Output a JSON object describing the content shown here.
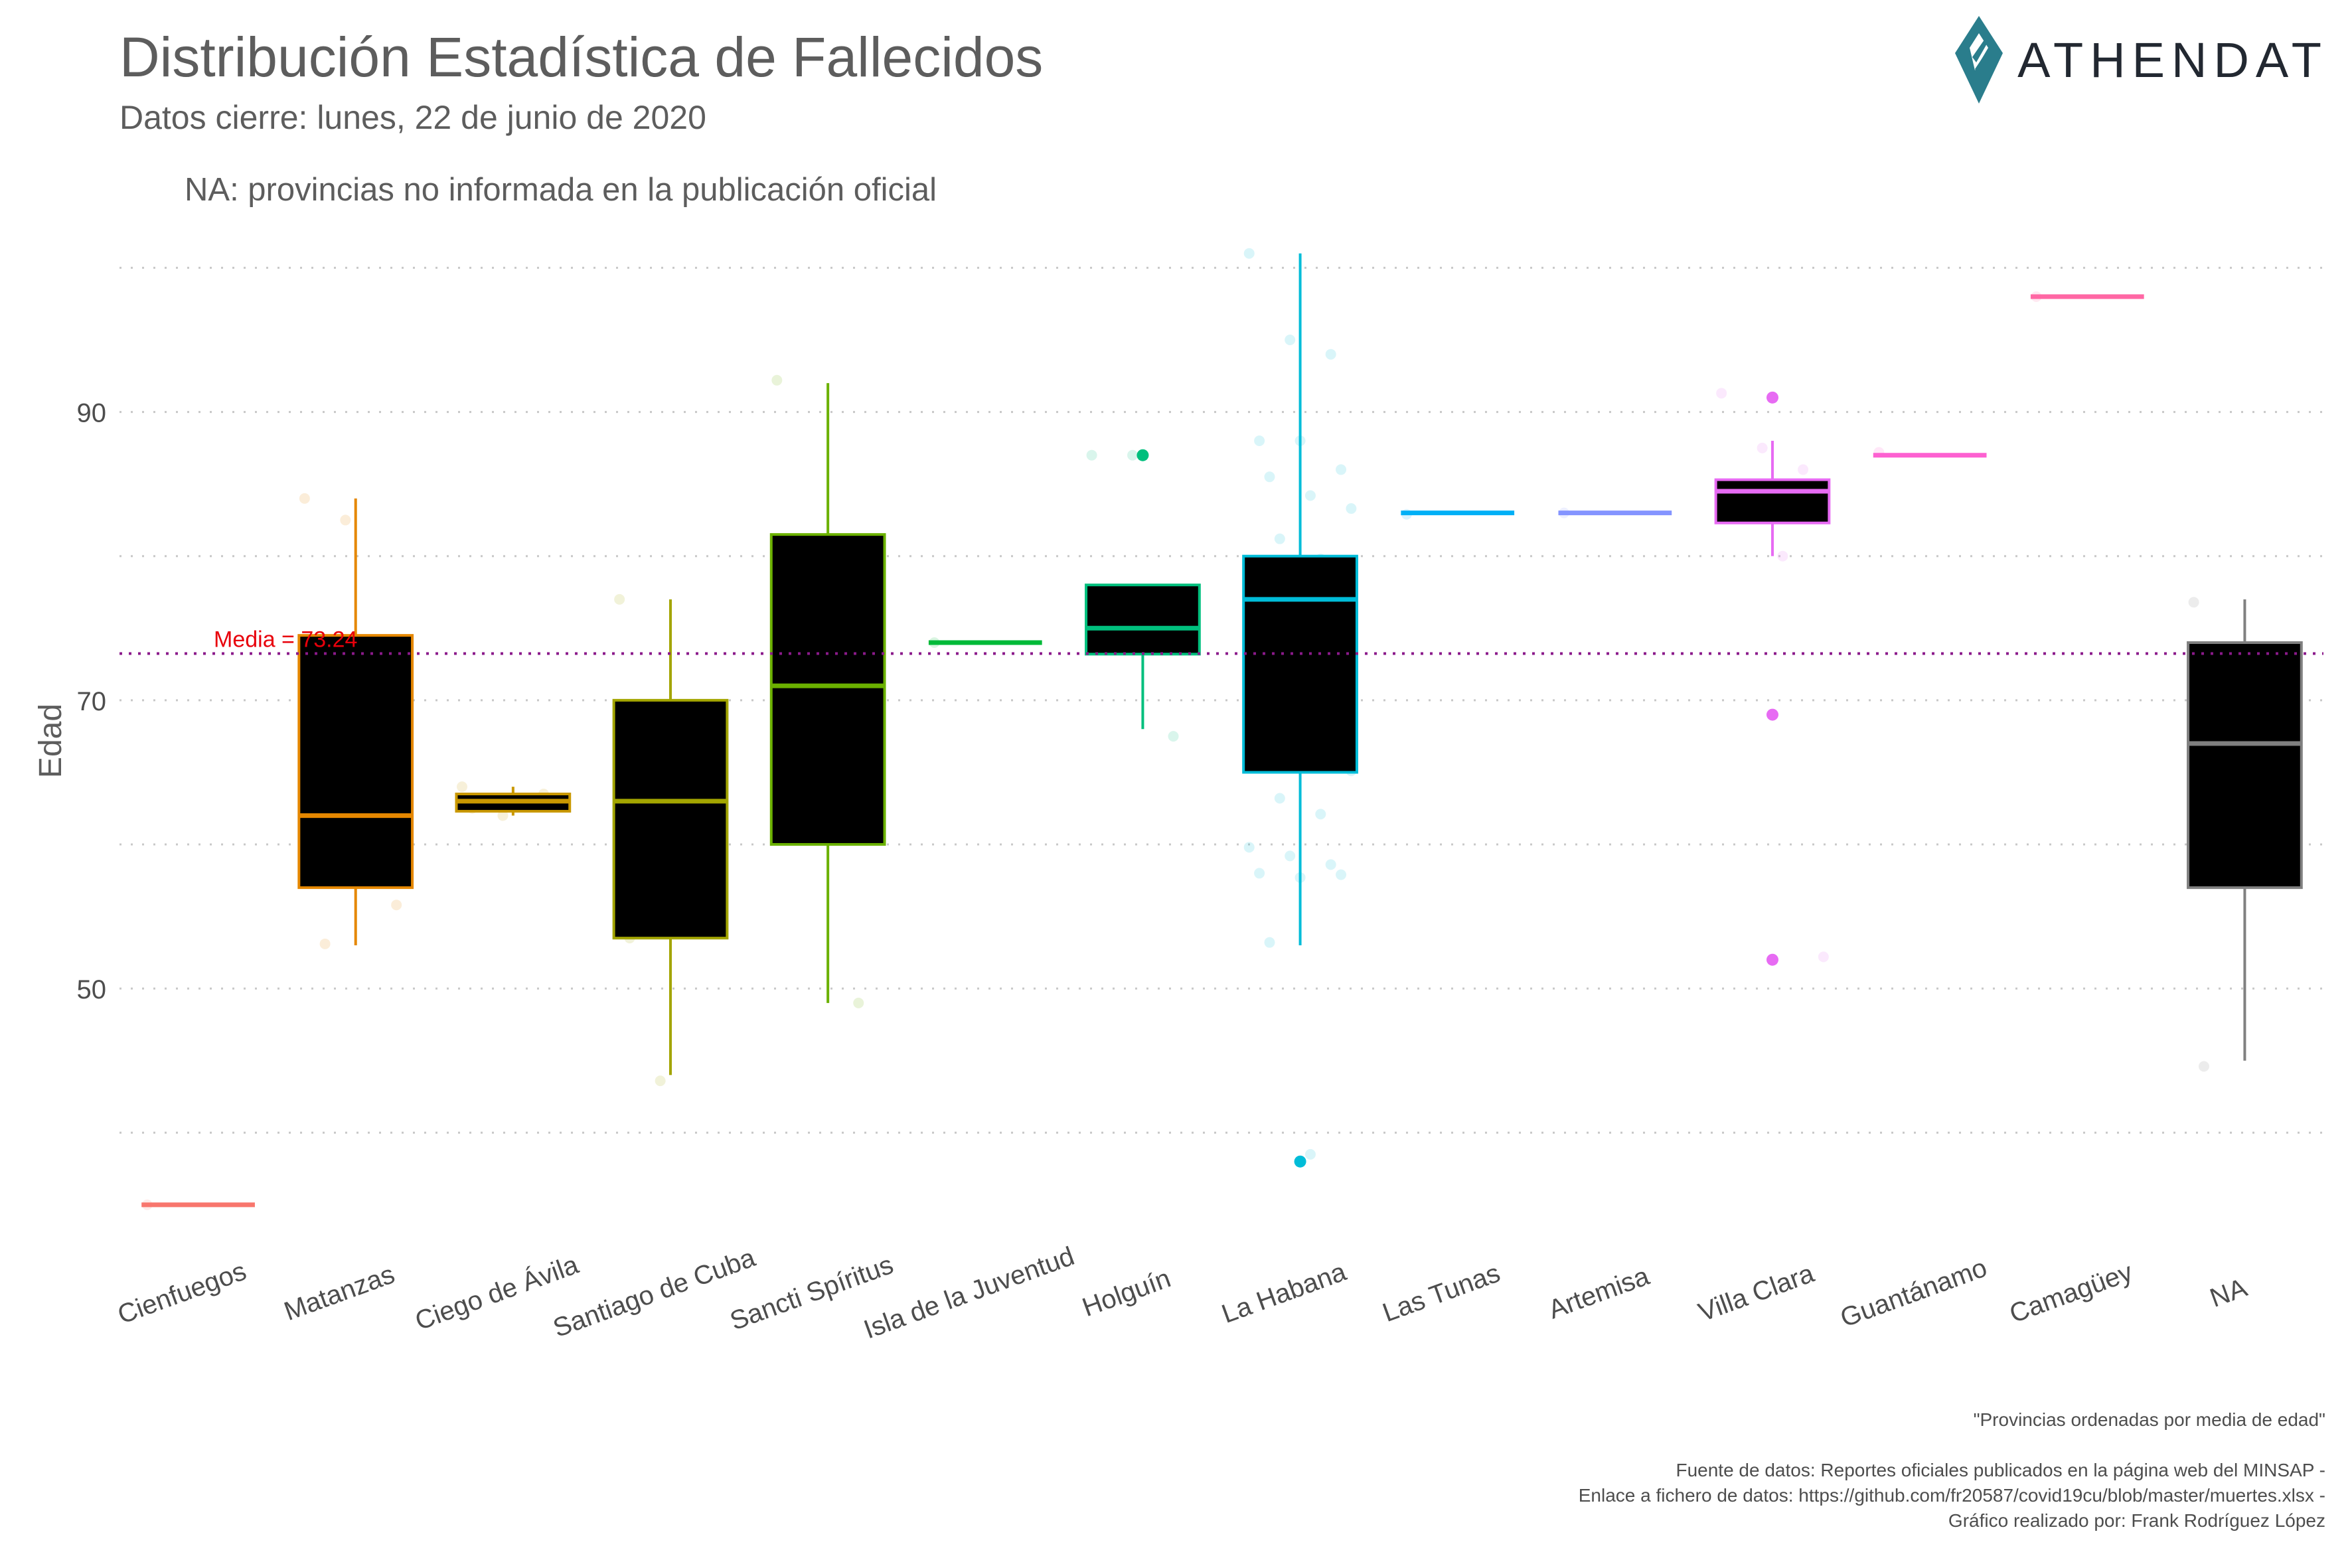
{
  "header": {
    "title": "Distribución Estadística de Fallecidos",
    "subtitle": "Datos cierre: lunes, 22 de junio de 2020",
    "note": "NA: provincias no informada en la publicación oficial"
  },
  "logo": {
    "text": "ATHENDAT",
    "icon": "athendat-diamond-icon",
    "color": "#2a7d8c"
  },
  "caption": {
    "order_note": "\"Provincias ordenadas por media de edad\"",
    "source": "Fuente de datos: Reportes oficiales publicados en la página web del MINSAP -",
    "link": "Enlace a fichero de datos: https://github.com/fr20587/covid19cu/blob/master/muertes.xlsx -",
    "author": "Gráfico realizado por: Frank Rodríguez López"
  },
  "chart_data": {
    "type": "boxplot",
    "ylabel": "Edad",
    "xlabel": "",
    "ylim": [
      32,
      102
    ],
    "yticks": [
      50,
      70,
      90
    ],
    "grid": true,
    "legend": "none",
    "mean_line": {
      "value": 73.24,
      "label": "Media = 73.24",
      "color": "#e8000b",
      "line_color": "#8b1a8b"
    },
    "categories": [
      {
        "name": "Cienfuegos",
        "color": "#f8766d",
        "q1": 35,
        "median": 35,
        "q3": 35,
        "whisker_low": 35,
        "whisker_high": 35,
        "outliers": [],
        "points": [
          35
        ]
      },
      {
        "name": "Matanzas",
        "color": "#e58700",
        "q1": 57,
        "median": 62,
        "q3": 74.5,
        "whisker_low": 53,
        "whisker_high": 84,
        "outliers": [],
        "points": [
          84,
          82.5,
          66.7,
          62,
          57.5,
          55.8,
          53.1
        ]
      },
      {
        "name": "Ciego de Ávila",
        "color": "#c99800",
        "q1": 62.3,
        "median": 63,
        "q3": 63.5,
        "whisker_low": 62,
        "whisker_high": 64,
        "outliers": [],
        "points": [
          64,
          62,
          63.5,
          62.5
        ]
      },
      {
        "name": "Santiago de Cuba",
        "color": "#a3a500",
        "q1": 53.5,
        "median": 63,
        "q3": 70,
        "whisker_low": 44,
        "whisker_high": 77,
        "outliers": [],
        "points": [
          77,
          43.6,
          63,
          53.5
        ]
      },
      {
        "name": "Sancti Spíritus",
        "color": "#6bb100",
        "q1": 60,
        "median": 71,
        "q3": 81.5,
        "whisker_low": 49,
        "whisker_high": 92,
        "outliers": [],
        "points": [
          92.2,
          70.8,
          49
        ]
      },
      {
        "name": "Isla de la Juventud",
        "color": "#00ba38",
        "q1": 74,
        "median": 74,
        "q3": 74,
        "whisker_low": 74,
        "whisker_high": 74,
        "outliers": [],
        "points": [
          74
        ]
      },
      {
        "name": "Holguín",
        "color": "#00bf7d",
        "q1": 73.2,
        "median": 75,
        "q3": 78,
        "whisker_low": 68,
        "whisker_high": 78,
        "outliers": [
          87
        ],
        "points": [
          87,
          87,
          67.5,
          75
        ]
      },
      {
        "name": "La Habana",
        "color": "#00bcd8",
        "q1": 65,
        "median": 77,
        "q3": 80,
        "whisker_low": 53,
        "whisker_high": 101,
        "outliers": [
          38
        ],
        "points": [
          101,
          95,
          94,
          88,
          88,
          86,
          85.5,
          84.2,
          83.3,
          81.2,
          79.8,
          79,
          78,
          77.1,
          76.4,
          75.8,
          72.3,
          68.4,
          68,
          65.1,
          63.2,
          62.1,
          59.8,
          59.2,
          58.6,
          58,
          57.7,
          57.9,
          53.2,
          38.5
        ]
      },
      {
        "name": "Las Tunas",
        "color": "#00b0f6",
        "q1": 83,
        "median": 83,
        "q3": 83,
        "whisker_low": 83,
        "whisker_high": 83,
        "outliers": [],
        "points": [
          82.9
        ]
      },
      {
        "name": "Artemisa",
        "color": "#8494ff",
        "q1": 83,
        "median": 83,
        "q3": 83,
        "whisker_low": 83,
        "whisker_high": 83,
        "outliers": [],
        "points": [
          83
        ]
      },
      {
        "name": "Villa Clara",
        "color": "#e76bf3",
        "q1": 82.3,
        "median": 84.5,
        "q3": 85.3,
        "whisker_low": 80,
        "whisker_high": 88,
        "outliers": [
          91,
          69,
          52
        ],
        "points": [
          91.3,
          87.5,
          86,
          85,
          84,
          83.5,
          83,
          80,
          52.2
        ]
      },
      {
        "name": "Guantánamo",
        "color": "#fd61d1",
        "q1": 87,
        "median": 87,
        "q3": 87,
        "whisker_low": 87,
        "whisker_high": 87,
        "outliers": [],
        "points": [
          87.2
        ]
      },
      {
        "name": "Camagüey",
        "color": "#ff67a4",
        "q1": 98,
        "median": 98,
        "q3": 98,
        "whisker_low": 98,
        "whisker_high": 98,
        "outliers": [],
        "points": [
          98
        ]
      },
      {
        "name": "NA",
        "color": "#808080",
        "q1": 57,
        "median": 67,
        "q3": 74,
        "whisker_low": 45,
        "whisker_high": 77,
        "outliers": [],
        "points": [
          76.8,
          72.8,
          61.2,
          44.6
        ]
      }
    ]
  }
}
